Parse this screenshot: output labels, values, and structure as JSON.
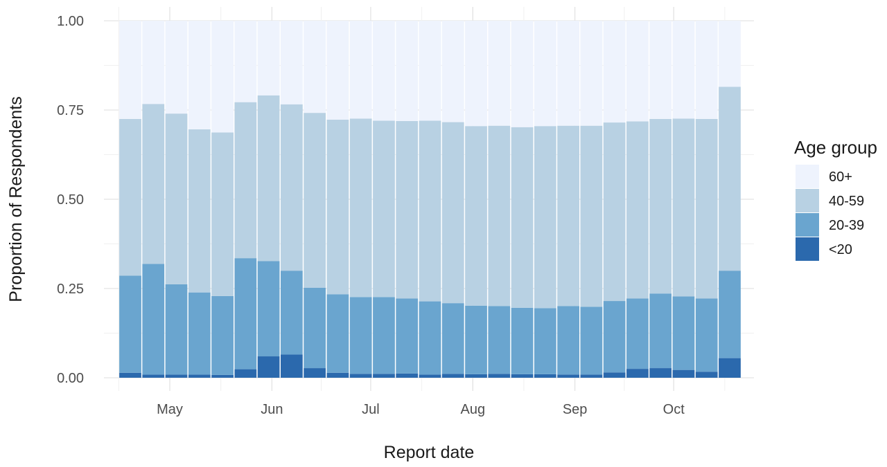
{
  "chart_data": {
    "type": "bar",
    "stacked": true,
    "title": "",
    "xlabel": "Report date",
    "ylabel": "Proportion of Respondents",
    "ylim": [
      0,
      1
    ],
    "y_ticks": [
      "0.00",
      "0.25",
      "0.50",
      "0.75",
      "1.00"
    ],
    "x_ticks": [
      "May",
      "Jun",
      "Jul",
      "Aug",
      "Sep",
      "Oct"
    ],
    "grid": true,
    "legend": {
      "title": "Age group",
      "position": "right"
    },
    "categories": [
      "2020-04-19",
      "2020-04-26",
      "2020-05-03",
      "2020-05-10",
      "2020-05-17",
      "2020-05-24",
      "2020-05-31",
      "2020-06-07",
      "2020-06-14",
      "2020-06-21",
      "2020-06-28",
      "2020-07-05",
      "2020-07-12",
      "2020-07-19",
      "2020-07-26",
      "2020-08-02",
      "2020-08-09",
      "2020-08-16",
      "2020-08-23",
      "2020-08-30",
      "2020-09-06",
      "2020-09-13",
      "2020-09-20",
      "2020-09-27",
      "2020-10-04",
      "2020-10-11",
      "2020-10-18"
    ],
    "series": [
      {
        "name": "<20",
        "color": "#2b69ad",
        "values": [
          0.014,
          0.009,
          0.009,
          0.009,
          0.008,
          0.024,
          0.06,
          0.065,
          0.027,
          0.014,
          0.011,
          0.011,
          0.012,
          0.009,
          0.011,
          0.01,
          0.011,
          0.01,
          0.01,
          0.009,
          0.009,
          0.015,
          0.025,
          0.027,
          0.022,
          0.017,
          0.055
        ]
      },
      {
        "name": "20-39",
        "color": "#6aa5cf",
        "values": [
          0.272,
          0.31,
          0.253,
          0.23,
          0.221,
          0.311,
          0.267,
          0.235,
          0.225,
          0.22,
          0.215,
          0.215,
          0.21,
          0.205,
          0.198,
          0.192,
          0.19,
          0.186,
          0.185,
          0.192,
          0.19,
          0.2,
          0.197,
          0.209,
          0.206,
          0.205,
          0.245
        ]
      },
      {
        "name": "40-59",
        "color": "#b8d1e3",
        "values": [
          0.439,
          0.448,
          0.478,
          0.457,
          0.458,
          0.437,
          0.464,
          0.466,
          0.49,
          0.489,
          0.5,
          0.494,
          0.497,
          0.506,
          0.507,
          0.503,
          0.505,
          0.506,
          0.51,
          0.505,
          0.507,
          0.5,
          0.496,
          0.489,
          0.498,
          0.503,
          0.515
        ]
      },
      {
        "name": "60+",
        "color": "#eef3fd",
        "values": [
          0.275,
          0.233,
          0.26,
          0.304,
          0.313,
          0.228,
          0.209,
          0.234,
          0.258,
          0.277,
          0.274,
          0.28,
          0.281,
          0.28,
          0.284,
          0.295,
          0.294,
          0.298,
          0.295,
          0.294,
          0.294,
          0.285,
          0.282,
          0.275,
          0.274,
          0.275,
          0.185
        ]
      }
    ]
  }
}
